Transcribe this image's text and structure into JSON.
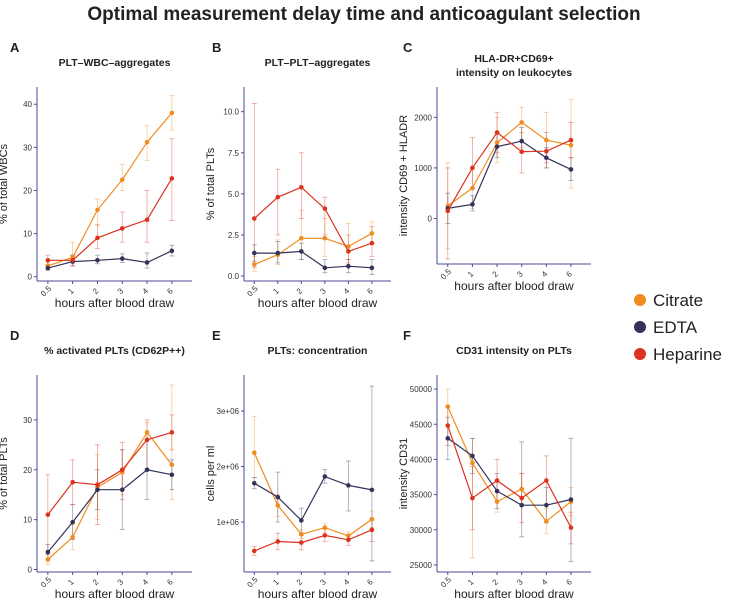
{
  "figure_title": "Optimal measurement delay time and anticoagulant selection",
  "legend": [
    {
      "name": "Citrate",
      "color": "#f08c1e"
    },
    {
      "name": "EDTA",
      "color": "#33335a"
    },
    {
      "name": "Heparine",
      "color": "#dc321e"
    }
  ],
  "chart_data": [
    {
      "panel": "A",
      "type": "line",
      "title": "PLT–WBC–aggregates",
      "xlabel": "hours after blood draw",
      "ylabel": "% of total WBCs",
      "x": [
        "0.5",
        "1",
        "2",
        "3",
        "4",
        "6"
      ],
      "ylim": [
        -1,
        44
      ],
      "yticks": [
        0,
        10,
        20,
        30,
        40
      ],
      "ytick_labels": [
        "0",
        "10",
        "20",
        "30",
        "40"
      ],
      "series": [
        {
          "name": "Citrate",
          "values": [
            2.5,
            4.5,
            15.5,
            22.5,
            31.2,
            38
          ],
          "err": [
            [
              1.8,
              3.2
            ],
            [
              3.5,
              8
            ],
            [
              12,
              18
            ],
            [
              20,
              26
            ],
            [
              27,
              35
            ],
            [
              34,
              42
            ]
          ]
        },
        {
          "name": "EDTA",
          "values": [
            2,
            3.5,
            3.8,
            4.2,
            3.3,
            6
          ],
          "err": [
            [
              1.5,
              2.8
            ],
            [
              2.5,
              5
            ],
            [
              3,
              5
            ],
            [
              3.3,
              5.3
            ],
            [
              2,
              5.5
            ],
            [
              4.8,
              7.3
            ]
          ]
        },
        {
          "name": "Heparine",
          "values": [
            3.8,
            3.8,
            9,
            11.2,
            13.2,
            22.8
          ],
          "err": [
            [
              2.5,
              5
            ],
            [
              2.5,
              5
            ],
            [
              6.5,
              12
            ],
            [
              8,
              15
            ],
            [
              8,
              20
            ],
            [
              13,
              32
            ]
          ]
        }
      ]
    },
    {
      "panel": "B",
      "type": "line",
      "title": "PLT–PLT–aggregates",
      "xlabel": "hours after blood draw",
      "ylabel": "% of total PLTs",
      "x": [
        "0.5",
        "1",
        "2",
        "3",
        "4",
        "6"
      ],
      "ylim": [
        -0.3,
        11.5
      ],
      "yticks": [
        0,
        2.5,
        5,
        7.5,
        10
      ],
      "ytick_labels": [
        "0.0",
        "2.5",
        "5.0",
        "7.5",
        "10.0"
      ],
      "series": [
        {
          "name": "Citrate",
          "values": [
            0.7,
            1.3,
            2.3,
            2.3,
            1.8,
            2.6
          ],
          "err": [
            [
              0.3,
              1.2
            ],
            [
              0.7,
              2.2
            ],
            [
              1,
              4
            ],
            [
              1.2,
              3.5
            ],
            [
              1,
              3.2
            ],
            [
              2,
              3.3
            ]
          ]
        },
        {
          "name": "EDTA",
          "values": [
            1.4,
            1.4,
            1.5,
            0.5,
            0.6,
            0.5
          ],
          "err": [
            [
              0.9,
              1.9
            ],
            [
              0.8,
              2.1
            ],
            [
              1,
              2
            ],
            [
              0.2,
              1
            ],
            [
              0.2,
              1
            ],
            [
              0.1,
              1
            ]
          ]
        },
        {
          "name": "Heparine",
          "values": [
            3.5,
            4.8,
            5.4,
            4.1,
            1.5,
            2
          ],
          "err": [
            [
              0.5,
              10.5
            ],
            [
              2.5,
              6.5
            ],
            [
              3.5,
              7.5
            ],
            [
              2.5,
              4.8
            ],
            [
              0.8,
              2.5
            ],
            [
              1.2,
              3
            ]
          ]
        }
      ]
    },
    {
      "panel": "C",
      "type": "line",
      "title": "HLA-DR+CD69+ intensity on leukocytes",
      "title_lines": [
        "HLA-DR+CD69+",
        "intensity on leukocytes"
      ],
      "xlabel": "hours after blood draw",
      "ylabel": "intensity CD69 + HLADR",
      "x": [
        "0.5",
        "1",
        "2",
        "3",
        "4",
        "6"
      ],
      "ylim": [
        -900,
        2600
      ],
      "yticks": [
        0,
        1000,
        2000
      ],
      "ytick_labels": [
        "0",
        "1000",
        "2000"
      ],
      "series": [
        {
          "name": "Citrate",
          "values": [
            250,
            600,
            1500,
            1900,
            1550,
            1450
          ],
          "err": [
            [
              -600,
              1100
            ],
            [
              200,
              1000
            ],
            [
              1100,
              2000
            ],
            [
              1400,
              2200
            ],
            [
              1000,
              2100
            ],
            [
              600,
              2350
            ]
          ]
        },
        {
          "name": "EDTA",
          "values": [
            200,
            280,
            1420,
            1530,
            1200,
            970
          ],
          "err": [
            [
              -100,
              500
            ],
            [
              150,
              450
            ],
            [
              1200,
              1700
            ],
            [
              1300,
              1800
            ],
            [
              1000,
              1400
            ],
            [
              750,
              1200
            ]
          ]
        },
        {
          "name": "Heparine",
          "values": [
            150,
            1000,
            1700,
            1320,
            1330,
            1550
          ],
          "err": [
            [
              -800,
              1000
            ],
            [
              600,
              1600
            ],
            [
              1300,
              2100
            ],
            [
              900,
              1700
            ],
            [
              1100,
              1700
            ],
            [
              1200,
              1900
            ]
          ]
        }
      ]
    },
    {
      "panel": "D",
      "type": "line",
      "title": "% activated PLTs (CD62P++)",
      "xlabel": "hours after blood draw",
      "ylabel": "% of total PLTs",
      "x": [
        "0.5",
        "1",
        "2",
        "3",
        "4",
        "6"
      ],
      "ylim": [
        -0.5,
        39
      ],
      "yticks": [
        0,
        10,
        20,
        30
      ],
      "ytick_labels": [
        "0",
        "10",
        "20",
        "30"
      ],
      "series": [
        {
          "name": "Citrate",
          "values": [
            2,
            6.5,
            16.5,
            19.5,
            27.5,
            21
          ],
          "err": [
            [
              1,
              3
            ],
            [
              4,
              9
            ],
            [
              10,
              23
            ],
            [
              15,
              24
            ],
            [
              26,
              29.5
            ],
            [
              14,
              37
            ]
          ]
        },
        {
          "name": "EDTA",
          "values": [
            3.5,
            9.5,
            16,
            16,
            20,
            19
          ],
          "err": [
            [
              2,
              5
            ],
            [
              6,
              13
            ],
            [
              12,
              20
            ],
            [
              8,
              24
            ],
            [
              14,
              26
            ],
            [
              16,
              22
            ]
          ]
        },
        {
          "name": "Heparine",
          "values": [
            11,
            17.5,
            17,
            20,
            26,
            27.5
          ],
          "err": [
            [
              3,
              19
            ],
            [
              13,
              22
            ],
            [
              9,
              25
            ],
            [
              14,
              25.5
            ],
            [
              20,
              30
            ],
            [
              24,
              31
            ]
          ]
        }
      ]
    },
    {
      "panel": "E",
      "type": "line",
      "title": "PLTs: concentration",
      "xlabel": "hours after blood draw",
      "ylabel": "cells per ml",
      "x": [
        "0.5",
        "1",
        "2",
        "3",
        "4",
        "6"
      ],
      "ylim": [
        100000,
        3650000
      ],
      "yticks": [
        1000000,
        2000000,
        3000000
      ],
      "ytick_labels": [
        "1e+06",
        "2e+06",
        "3e+06"
      ],
      "series": [
        {
          "name": "Citrate",
          "values": [
            2250000,
            1300000,
            780000,
            900000,
            750000,
            1050000
          ],
          "err": [
            [
              1800000,
              2900000
            ],
            [
              1100000,
              1500000
            ],
            [
              700000,
              860000
            ],
            [
              820000,
              980000
            ],
            [
              680000,
              820000
            ],
            [
              900000,
              1200000
            ]
          ]
        },
        {
          "name": "EDTA",
          "values": [
            1700000,
            1450000,
            1030000,
            1820000,
            1660000,
            1580000
          ],
          "err": [
            [
              1600000,
              1800000
            ],
            [
              1000000,
              1900000
            ],
            [
              800000,
              1250000
            ],
            [
              1700000,
              1950000
            ],
            [
              1200000,
              2100000
            ],
            [
              300000,
              3450000
            ]
          ]
        },
        {
          "name": "Heparine",
          "values": [
            480000,
            650000,
            630000,
            760000,
            680000,
            860000
          ],
          "err": [
            [
              400000,
              560000
            ],
            [
              500000,
              800000
            ],
            [
              500000,
              760000
            ],
            [
              650000,
              870000
            ],
            [
              580000,
              780000
            ],
            [
              650000,
              1070000
            ]
          ]
        }
      ]
    },
    {
      "panel": "F",
      "type": "line",
      "title": "CD31 intensity on PLTs",
      "xlabel": "hours after blood draw",
      "ylabel": "intensity CD31",
      "x": [
        "0.5",
        "1",
        "2",
        "3",
        "4",
        "6"
      ],
      "ylim": [
        24000,
        52000
      ],
      "yticks": [
        25000,
        30000,
        35000,
        40000,
        45000,
        50000
      ],
      "ytick_labels": [
        "25000",
        "30000",
        "35000",
        "40000",
        "45000",
        "50000"
      ],
      "series": [
        {
          "name": "Citrate",
          "values": [
            47500,
            39500,
            34000,
            35800,
            31200,
            34000
          ],
          "err": [
            [
              45000,
              50000
            ],
            [
              26000,
              43000
            ],
            [
              32500,
              35500
            ],
            [
              33500,
              38000
            ],
            [
              29500,
              33000
            ],
            [
              32000,
              36000
            ]
          ]
        },
        {
          "name": "EDTA",
          "values": [
            43000,
            40500,
            35500,
            33500,
            33500,
            34300
          ],
          "err": [
            [
              40000,
              46000
            ],
            [
              38000,
              43000
            ],
            [
              33000,
              38000
            ],
            [
              29000,
              42500
            ],
            [
              31000,
              36000
            ],
            [
              25500,
              43000
            ]
          ]
        },
        {
          "name": "Heparine",
          "values": [
            44800,
            34500,
            37000,
            34500,
            37000,
            30300
          ],
          "err": [
            [
              42000,
              47500
            ],
            [
              30000,
              39000
            ],
            [
              34000,
              40000
            ],
            [
              31000,
              38000
            ],
            [
              33500,
              40500
            ],
            [
              28000,
              32500
            ]
          ]
        }
      ]
    }
  ]
}
